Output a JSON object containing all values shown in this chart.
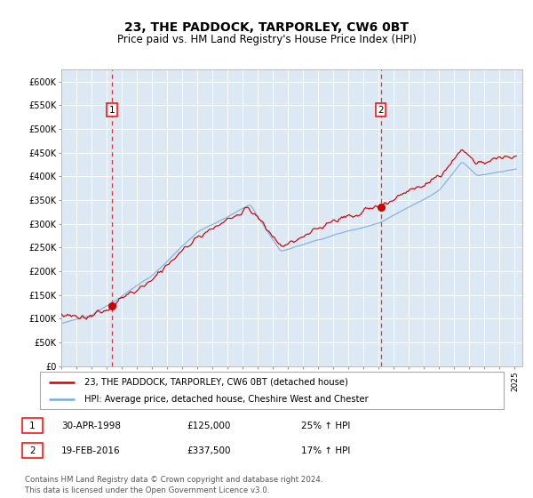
{
  "title": "23, THE PADDOCK, TARPORLEY, CW6 0BT",
  "subtitle": "Price paid vs. HM Land Registry's House Price Index (HPI)",
  "title_fontsize": 10,
  "subtitle_fontsize": 8.5,
  "ylabel_ticks": [
    "£0",
    "£50K",
    "£100K",
    "£150K",
    "£200K",
    "£250K",
    "£300K",
    "£350K",
    "£400K",
    "£450K",
    "£500K",
    "£550K",
    "£600K"
  ],
  "ytick_values": [
    0,
    50000,
    100000,
    150000,
    200000,
    250000,
    300000,
    350000,
    400000,
    450000,
    500000,
    550000,
    600000
  ],
  "ylim": [
    0,
    620000
  ],
  "background_color": "#dce9f5",
  "red_line_color": "#cc0000",
  "blue_line_color": "#7aaadd",
  "marker_color": "#cc0000",
  "vline_color": "#cc0000",
  "label1_date": "30-APR-1998",
  "label1_price": "£125,000",
  "label1_hpi": "25% ↑ HPI",
  "label2_date": "19-FEB-2016",
  "label2_price": "£337,500",
  "label2_hpi": "17% ↑ HPI",
  "sale1_year": 1998.33,
  "sale1_value": 125000,
  "sale2_year": 2016.13,
  "sale2_value": 337500,
  "legend_red": "23, THE PADDOCK, TARPORLEY, CW6 0BT (detached house)",
  "legend_blue": "HPI: Average price, detached house, Cheshire West and Chester",
  "footnote": "Contains HM Land Registry data © Crown copyright and database right 2024.\nThis data is licensed under the Open Government Licence v3.0."
}
